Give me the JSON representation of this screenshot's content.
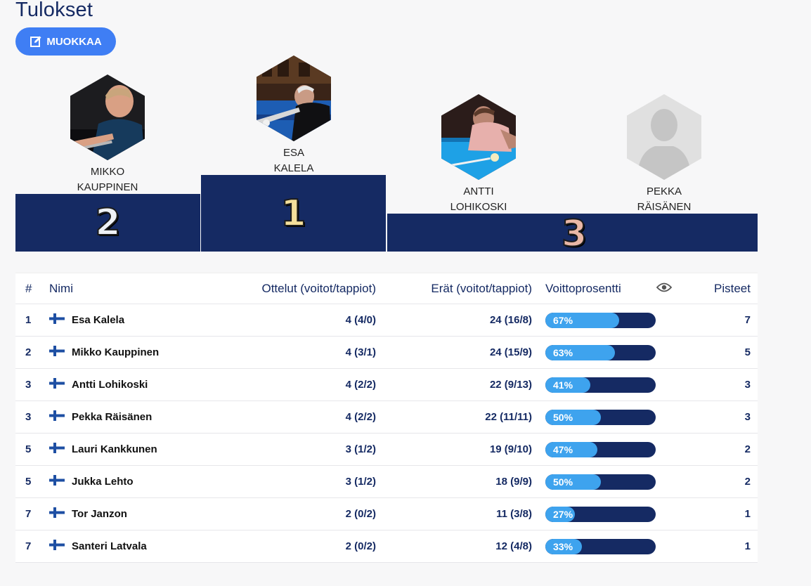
{
  "page": {
    "title": "Tulokset"
  },
  "edit_button": {
    "label": "MUOKKAA",
    "icon": "edit-icon"
  },
  "podium": {
    "first": {
      "name_line1": "ESA",
      "name_line2": "KALELA",
      "rank": "1",
      "rank_color": "#f3df9b"
    },
    "second": {
      "name_line1": "MIKKO",
      "name_line2": "KAUPPINEN",
      "rank": "2",
      "rank_color": "#eef1f5"
    },
    "third_a": {
      "name_line1": "ANTTI",
      "name_line2": "LOHIKOSKI"
    },
    "third_b": {
      "name_line1": "PEKKA",
      "name_line2": "RÄISÄNEN"
    },
    "third_rank": "3",
    "third_rank_color": "#e9b7a6"
  },
  "table": {
    "headers": {
      "rank": "#",
      "name": "Nimi",
      "matches": "Ottelut (voitot/tappiot)",
      "sets": "Erät (voitot/tappiot)",
      "win_pct": "Voittoprosentti",
      "visibility_icon": "eye-icon",
      "points": "Pisteet"
    },
    "rows": [
      {
        "rank": "1",
        "name": "Esa Kalela",
        "matches": "4 (4/0)",
        "sets": "24 (16/8)",
        "pct_label": "67%",
        "pct": 67,
        "points": "7"
      },
      {
        "rank": "2",
        "name": "Mikko Kauppinen",
        "matches": "4 (3/1)",
        "sets": "24 (15/9)",
        "pct_label": "63%",
        "pct": 63,
        "points": "5"
      },
      {
        "rank": "3",
        "name": "Antti Lohikoski",
        "matches": "4 (2/2)",
        "sets": "22 (9/13)",
        "pct_label": "41%",
        "pct": 41,
        "points": "3"
      },
      {
        "rank": "3",
        "name": "Pekka Räisänen",
        "matches": "4 (2/2)",
        "sets": "22 (11/11)",
        "pct_label": "50%",
        "pct": 50,
        "points": "3"
      },
      {
        "rank": "5",
        "name": "Lauri Kankkunen",
        "matches": "3 (1/2)",
        "sets": "19 (9/10)",
        "pct_label": "47%",
        "pct": 47,
        "points": "2"
      },
      {
        "rank": "5",
        "name": "Jukka Lehto",
        "matches": "3 (1/2)",
        "sets": "18 (9/9)",
        "pct_label": "50%",
        "pct": 50,
        "points": "2"
      },
      {
        "rank": "7",
        "name": "Tor Janzon",
        "matches": "2 (0/2)",
        "sets": "11 (3/8)",
        "pct_label": "27%",
        "pct": 27,
        "points": "1"
      },
      {
        "rank": "7",
        "name": "Santeri Latvala",
        "matches": "2 (0/2)",
        "sets": "12 (4/8)",
        "pct_label": "33%",
        "pct": 33,
        "points": "1"
      }
    ]
  },
  "colors": {
    "navy": "#152a63",
    "accent": "#3f7ef4",
    "bar_fill": "#3ea3ee"
  }
}
